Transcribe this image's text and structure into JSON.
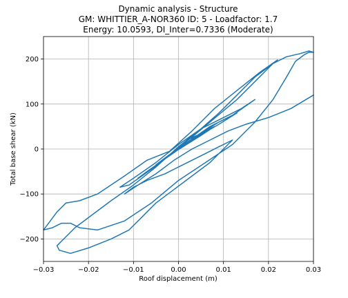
{
  "chart_data": {
    "type": "line",
    "title_lines": [
      "Dynamic analysis - Structure",
      "GM: WHITTIER_A-NOR360 ID: 5 -  Loadfactor: 1.7",
      "Energy: 10.0593, DI_Inter=0.7336 (Moderate)"
    ],
    "xlabel": "Roof displacement (m)",
    "ylabel": "Total base shear (kN)",
    "xlim": [
      -0.03,
      0.03
    ],
    "ylim": [
      -250,
      250
    ],
    "xticks": [
      -0.03,
      -0.02,
      -0.01,
      0.0,
      0.01,
      0.02,
      0.03
    ],
    "xtick_labels": [
      "−0.03",
      "−0.02",
      "−0.01",
      "0.00",
      "0.01",
      "0.02",
      "0.03"
    ],
    "yticks": [
      -200,
      -100,
      0,
      100,
      200
    ],
    "ytick_labels": [
      "−200",
      "−100",
      "0",
      "100",
      "200"
    ],
    "grid": true,
    "series_color": "#1f77b4",
    "series": [
      {
        "x": [
          0.0,
          0.002,
          0.004,
          0.002,
          -0.001,
          -0.003,
          0.001,
          0.005,
          0.008,
          0.006,
          0.002,
          -0.002,
          -0.005,
          -0.003,
          0.002,
          0.007,
          0.011,
          0.013,
          0.009,
          0.003,
          -0.002,
          -0.007,
          -0.009,
          -0.006,
          -0.001,
          0.005,
          0.009,
          0.012,
          0.017,
          0.014,
          0.01,
          0.005,
          0.0,
          -0.005,
          -0.01,
          -0.013,
          -0.011,
          -0.006,
          0.001,
          0.007,
          0.013,
          0.018,
          0.021,
          0.022,
          0.018,
          0.013,
          0.008,
          0.003,
          -0.002,
          -0.007,
          -0.012,
          -0.018,
          -0.022,
          -0.025,
          -0.027,
          -0.03,
          -0.028,
          -0.026,
          -0.024,
          -0.022,
          -0.018,
          -0.012,
          -0.006,
          0.0,
          0.006,
          0.012,
          0.017,
          0.021,
          0.024,
          0.026,
          0.028,
          0.029,
          0.03,
          0.029,
          0.027,
          0.024,
          0.021,
          0.017,
          0.013,
          0.009,
          0.005,
          0.0,
          -0.005,
          -0.01,
          -0.015,
          -0.019,
          -0.023,
          -0.025,
          -0.027,
          -0.0265,
          -0.024,
          -0.02,
          -0.015,
          -0.011,
          -0.008,
          -0.005,
          -0.001,
          0.003,
          0.007,
          0.01,
          0.012,
          0.009,
          0.005,
          0.001,
          -0.003,
          -0.007,
          -0.01,
          -0.012,
          -0.009,
          -0.005,
          -0.001,
          0.003,
          0.007,
          0.011,
          0.015,
          0.02,
          0.025,
          0.03
        ],
        "y": [
          0,
          15,
          30,
          20,
          -5,
          -20,
          5,
          30,
          50,
          40,
          15,
          -15,
          -35,
          -20,
          15,
          50,
          70,
          80,
          55,
          20,
          -15,
          -50,
          -65,
          -45,
          -5,
          35,
          60,
          75,
          110,
          90,
          70,
          45,
          10,
          -30,
          -65,
          -85,
          -80,
          -45,
          10,
          60,
          110,
          160,
          190,
          198,
          170,
          130,
          90,
          40,
          -5,
          -25,
          -60,
          -100,
          -115,
          -120,
          -140,
          -180,
          -175,
          -165,
          -165,
          -175,
          -180,
          -160,
          -120,
          -70,
          -30,
          10,
          60,
          110,
          160,
          195,
          210,
          215,
          215,
          218,
          212,
          205,
          190,
          160,
          120,
          80,
          45,
          5,
          -40,
          -80,
          -115,
          -145,
          -175,
          -195,
          -215,
          -225,
          -232,
          -220,
          -200,
          -180,
          -150,
          -120,
          -90,
          -60,
          -30,
          0,
          20,
          5,
          -15,
          -35,
          -55,
          -70,
          -85,
          -100,
          -80,
          -55,
          -25,
          0,
          20,
          40,
          55,
          70,
          90,
          120
        ]
      }
    ]
  }
}
